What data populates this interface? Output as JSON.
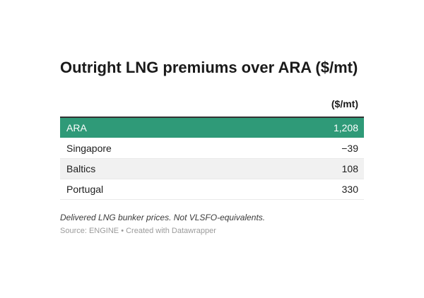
{
  "title": "Outright LNG premiums over ARA ($/mt)",
  "table": {
    "value_header": "($/mt)",
    "rows": [
      {
        "label": "ARA",
        "value": "1,208"
      },
      {
        "label": "Singapore",
        "value": "−39"
      },
      {
        "label": "Baltics",
        "value": "108"
      },
      {
        "label": "Portugal",
        "value": "330"
      }
    ]
  },
  "notes": "Delivered LNG bunker prices. Not VLSFO-equivalents.",
  "source": "Source: ENGINE • Created with Datawrapper",
  "colors": {
    "highlight_row_bg": "#2f9a78",
    "highlight_row_text": "#ffffff",
    "zebra_row_bg": "#f1f1f1",
    "header_border": "#333333",
    "row_border": "#e9e9e9",
    "text": "#1d1d1d",
    "source_text": "#9b9b9b"
  },
  "chart_data": {
    "type": "table",
    "title": "Outright LNG premiums over ARA ($/mt)",
    "columns": [
      "",
      "($/mt)"
    ],
    "categories": [
      "ARA",
      "Singapore",
      "Baltics",
      "Portugal"
    ],
    "values": [
      1208,
      -39,
      108,
      330
    ],
    "highlighted_row": "ARA",
    "notes": "Delivered LNG bunker prices. Not VLSFO-equivalents.",
    "source": "Source: ENGINE • Created with Datawrapper"
  }
}
